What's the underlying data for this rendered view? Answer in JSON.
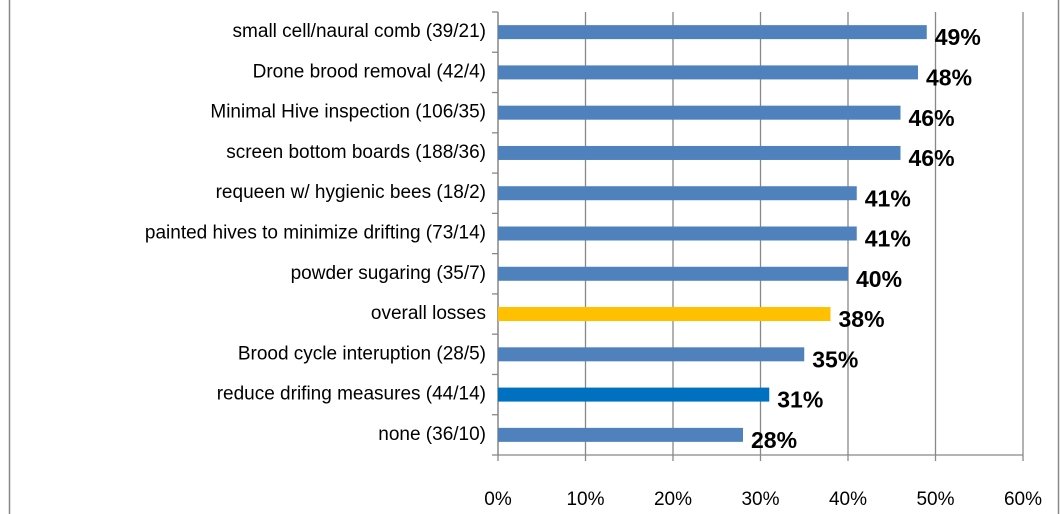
{
  "chart_data": {
    "type": "hbar",
    "categories": [
      "small cell/naural comb (39/21)",
      "Drone brood removal (42/4)",
      "Minimal Hive inspection (106/35)",
      "screen bottom boards (188/36)",
      "requeen w/ hygienic bees (18/2)",
      "painted hives to minimize drifting (73/14)",
      "powder sugaring (35/7)",
      "overall losses",
      "Brood cycle interuption (28/5)",
      "reduce drifing measures  (44/14)",
      "none (36/10)"
    ],
    "values": [
      49,
      48,
      46,
      46,
      41,
      41,
      40,
      38,
      35,
      31,
      28
    ],
    "value_labels": [
      "49%",
      "48%",
      "46%",
      "46%",
      "41%",
      "41%",
      "40%",
      "38%",
      "35%",
      "31%",
      "28%"
    ],
    "colors": [
      "#4f81bd",
      "#4f81bd",
      "#4f81bd",
      "#4f81bd",
      "#4f81bd",
      "#4f81bd",
      "#4f81bd",
      "#ffc000",
      "#4f81bd",
      "#0070c0",
      "#4f81bd"
    ],
    "xlim": [
      0,
      60
    ],
    "xticks": [
      {
        "value": 0,
        "label": "0%"
      },
      {
        "value": 10,
        "label": "10%"
      },
      {
        "value": 20,
        "label": "20%"
      },
      {
        "value": 30,
        "label": "30%"
      },
      {
        "value": 40,
        "label": "40%"
      },
      {
        "value": 50,
        "label": "50%"
      },
      {
        "value": 60,
        "label": "60%"
      }
    ],
    "grid": true
  }
}
